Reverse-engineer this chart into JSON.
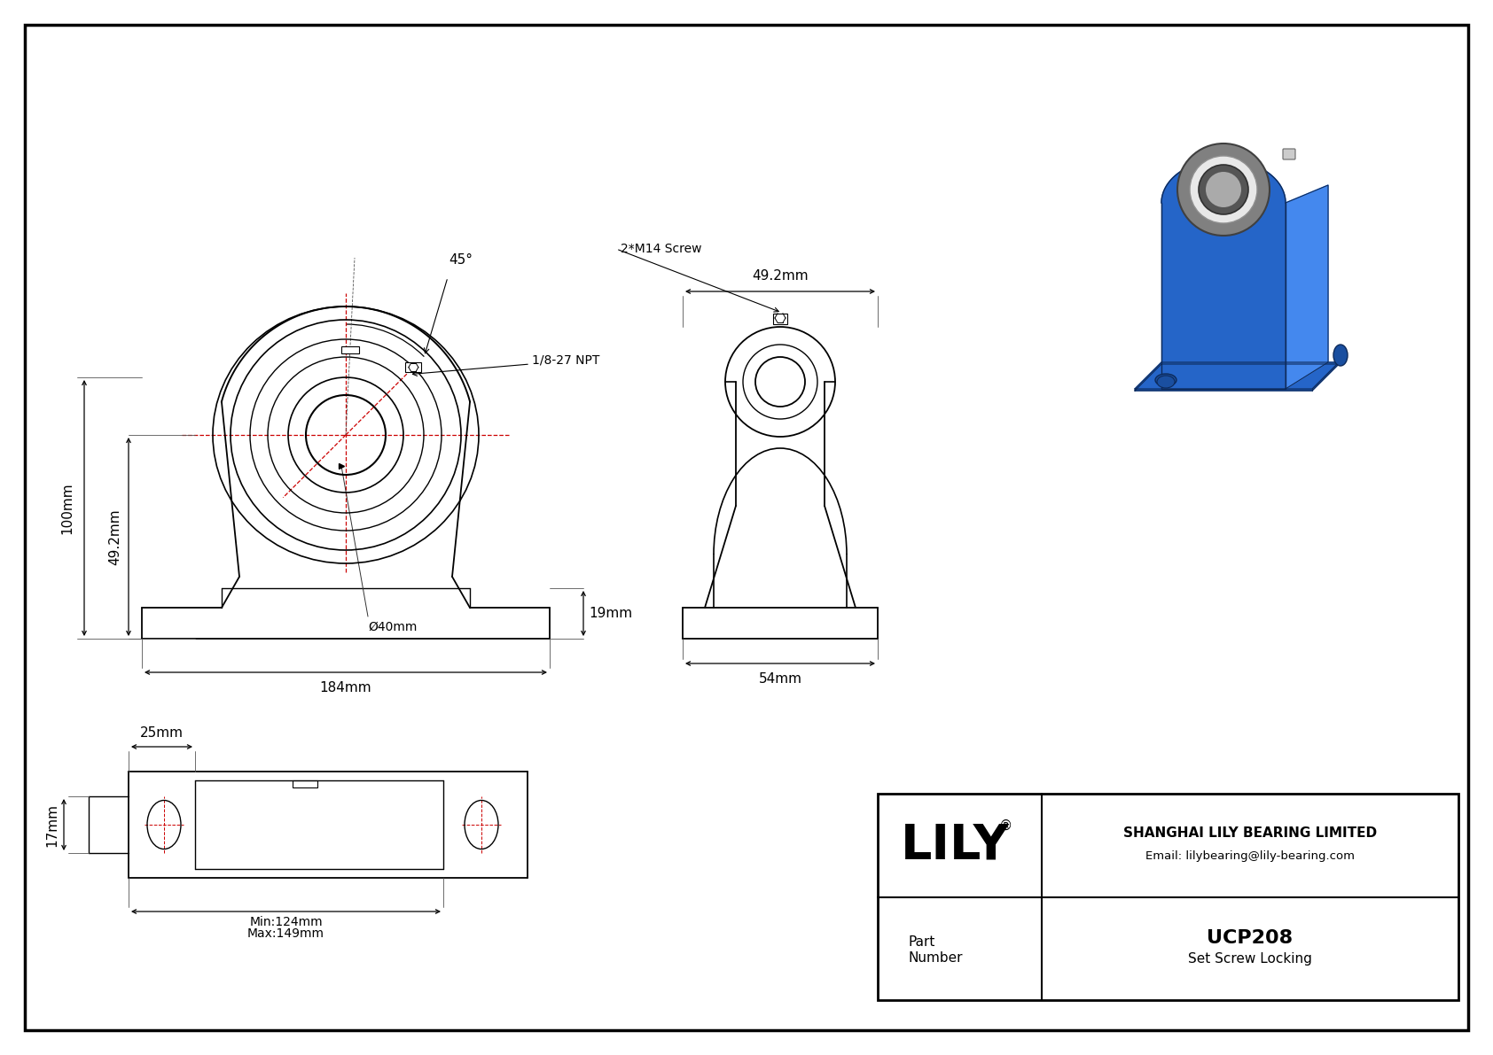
{
  "bg_color": "#ffffff",
  "line_color": "#000000",
  "red_line_color": "#cc0000",
  "dim_color": "#000000",
  "title_company": "SHANGHAI LILY BEARING LIMITED",
  "title_email": "Email: lilybearing@lily-bearing.com",
  "part_label": "Part\nNumber",
  "part_number": "UCP208",
  "part_type": "Set Screw Locking",
  "brand": "LILY",
  "dim_100mm": "100mm",
  "dim_49_2mm_left": "49.2mm",
  "dim_184mm": "184mm",
  "dim_40mm": "Ø40mm",
  "dim_19mm": "19mm",
  "dim_45deg": "45°",
  "dim_npt": "1/8-27 NPT",
  "dim_screw": "2*M14 Screw",
  "dim_49_2mm_top": "49.2mm",
  "dim_54mm": "54mm",
  "dim_25mm": "25mm",
  "dim_17mm": "17mm",
  "dim_min": "Min:124mm",
  "dim_max": "Max:149mm",
  "blue_dark": "#1a4fa0",
  "blue_mid": "#2565c8",
  "blue_light": "#4488ee",
  "silver": "#c0c0c0",
  "silver_dark": "#909090",
  "silver_light": "#e8e8e8"
}
